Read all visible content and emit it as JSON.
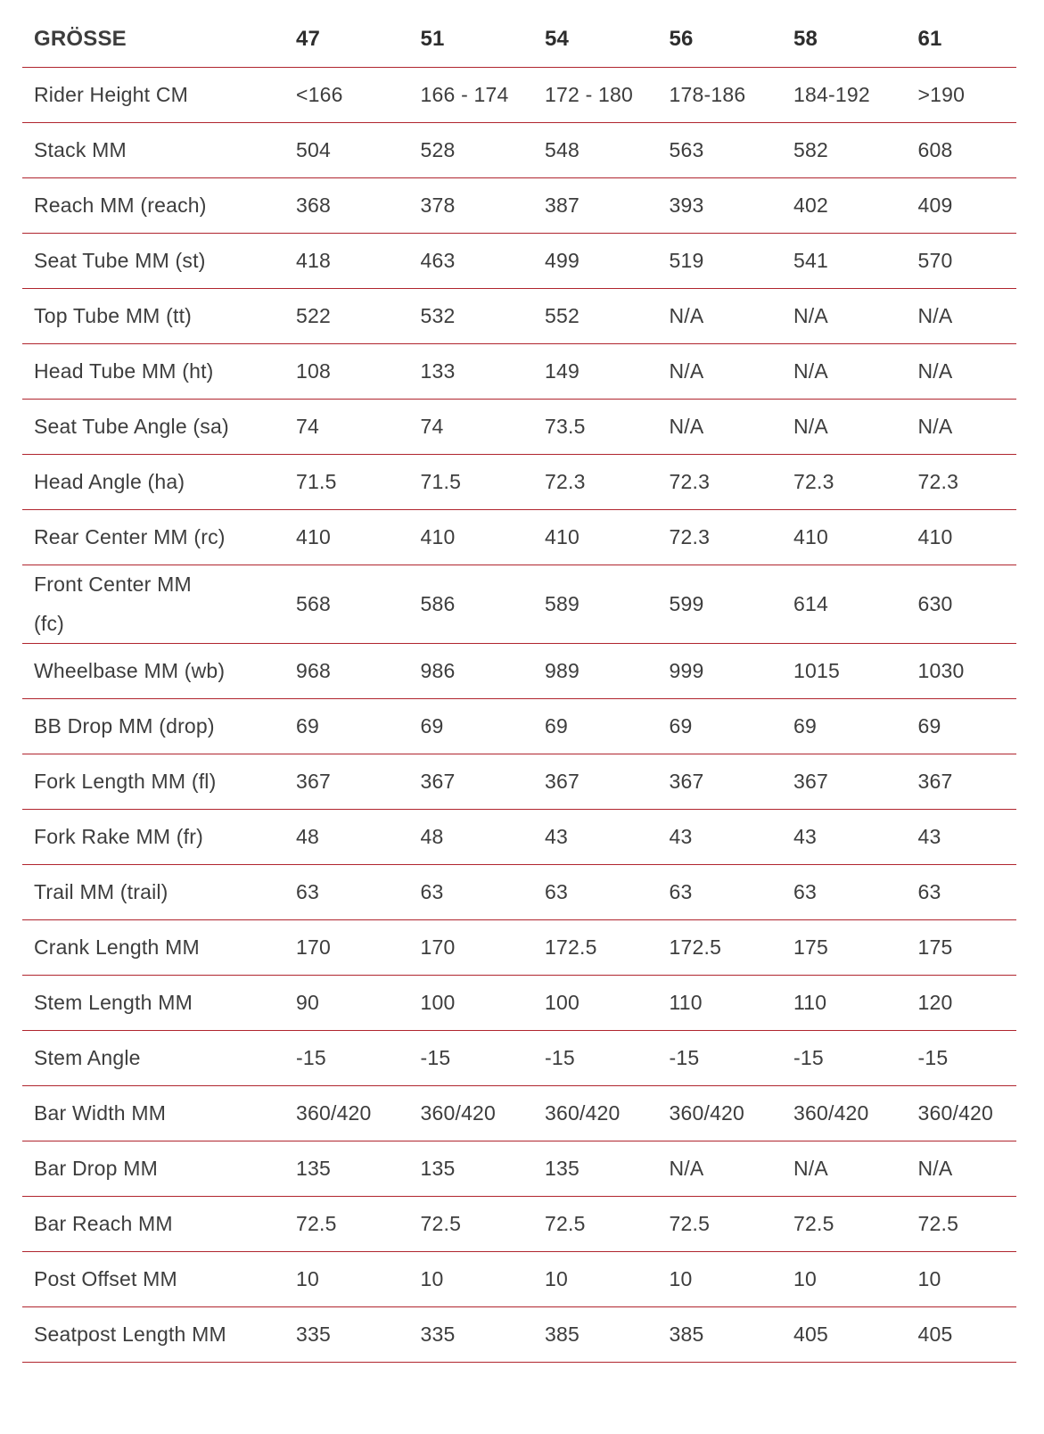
{
  "table": {
    "header": {
      "label": "GRÖSSE",
      "sizes": [
        "47",
        "51",
        "54",
        "56",
        "58",
        "61"
      ]
    },
    "rows": [
      {
        "label": "Rider Height CM",
        "values": [
          "<166",
          "166 - 174",
          "172 - 180",
          "178-186",
          "184-192",
          ">190"
        ]
      },
      {
        "label": "Stack MM",
        "values": [
          "504",
          "528",
          "548",
          "563",
          "582",
          "608"
        ]
      },
      {
        "label": "Reach MM (reach)",
        "values": [
          "368",
          "378",
          "387",
          "393",
          "402",
          "409"
        ]
      },
      {
        "label": "Seat Tube MM (st)",
        "values": [
          "418",
          "463",
          "499",
          "519",
          "541",
          "570"
        ]
      },
      {
        "label": "Top Tube MM (tt)",
        "values": [
          "522",
          "532",
          "552",
          "N/A",
          "N/A",
          "N/A"
        ]
      },
      {
        "label": "Head Tube MM (ht)",
        "values": [
          "108",
          "133",
          "149",
          "N/A",
          "N/A",
          "N/A"
        ]
      },
      {
        "label": "Seat Tube Angle (sa)",
        "values": [
          "74",
          "74",
          "73.5",
          "N/A",
          "N/A",
          "N/A"
        ]
      },
      {
        "label": "Head Angle (ha)",
        "values": [
          "71.5",
          "71.5",
          "72.3",
          "72.3",
          "72.3",
          "72.3"
        ]
      },
      {
        "label": "Rear Center MM (rc)",
        "values": [
          "410",
          "410",
          "410",
          "72.3",
          "410",
          "410"
        ]
      },
      {
        "label": "Front Center MM\n(fc)",
        "values": [
          "568",
          "586",
          "589",
          "599",
          "614",
          "630"
        ]
      },
      {
        "label": "Wheelbase MM (wb)",
        "values": [
          "968",
          "986",
          "989",
          "999",
          "1015",
          "1030"
        ]
      },
      {
        "label": "BB Drop MM (drop)",
        "values": [
          "69",
          "69",
          "69",
          "69",
          "69",
          "69"
        ]
      },
      {
        "label": "Fork Length MM (fl)",
        "values": [
          "367",
          "367",
          "367",
          "367",
          "367",
          "367"
        ]
      },
      {
        "label": "Fork Rake MM (fr)",
        "values": [
          "48",
          "48",
          "43",
          "43",
          "43",
          "43"
        ]
      },
      {
        "label": "Trail MM (trail)",
        "values": [
          "63",
          "63",
          "63",
          "63",
          "63",
          "63"
        ]
      },
      {
        "label": "Crank Length MM",
        "values": [
          "170",
          "170",
          "172.5",
          "172.5",
          "175",
          "175"
        ]
      },
      {
        "label": "Stem Length MM",
        "values": [
          "90",
          "100",
          "100",
          "110",
          "110",
          "120"
        ]
      },
      {
        "label": "Stem Angle",
        "values": [
          "-15",
          "-15",
          "-15",
          "-15",
          "-15",
          "-15"
        ]
      },
      {
        "label": "Bar Width MM",
        "values": [
          "360/420",
          "360/420",
          "360/420",
          "360/420",
          "360/420",
          "360/420"
        ]
      },
      {
        "label": "Bar Drop MM",
        "values": [
          "135",
          "135",
          "135",
          "N/A",
          "N/A",
          "N/A"
        ]
      },
      {
        "label": "Bar Reach MM",
        "values": [
          "72.5",
          "72.5",
          "72.5",
          "72.5",
          "72.5",
          "72.5"
        ]
      },
      {
        "label": "Post Offset MM",
        "values": [
          "10",
          "10",
          "10",
          "10",
          "10",
          "10"
        ]
      },
      {
        "label": "Seatpost Length MM",
        "values": [
          "335",
          "335",
          "385",
          "385",
          "405",
          "405"
        ]
      }
    ],
    "colors": {
      "divider": "#b0252e",
      "text": "#3d3d3d",
      "header_text": "#2d2d2d",
      "background": "#ffffff"
    }
  }
}
